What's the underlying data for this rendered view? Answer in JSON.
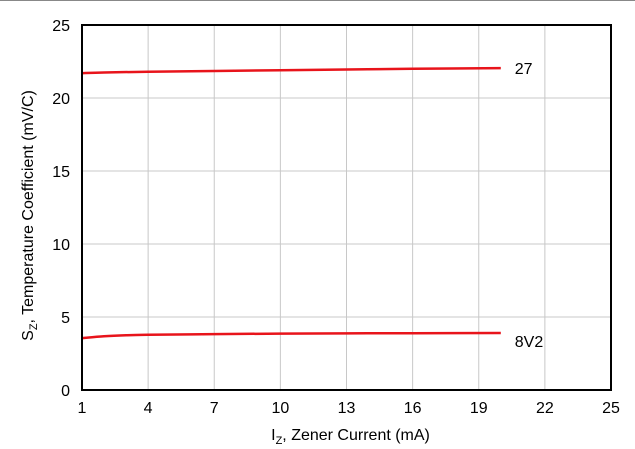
{
  "chart_data": {
    "type": "line",
    "title": "",
    "xlabel": {
      "main": "I",
      "sub": "Z",
      "rest": ", Zener Current (mA)"
    },
    "ylabel": {
      "main": "S",
      "sub": "Z",
      "rest": ", Temperature Coefficient (mV/C)"
    },
    "xlim": [
      1,
      25
    ],
    "ylim": [
      0,
      25
    ],
    "xticks": [
      1,
      4,
      7,
      10,
      13,
      16,
      19,
      22,
      25
    ],
    "yticks": [
      0,
      5,
      10,
      15,
      20,
      25
    ],
    "grid": true,
    "colors": {
      "series": "#e8141b",
      "grid": "#c8c8c8",
      "frame": "#000000"
    },
    "series": [
      {
        "name": "27",
        "points": [
          [
            1,
            21.7
          ],
          [
            2,
            21.75
          ],
          [
            4,
            21.8
          ],
          [
            7,
            21.85
          ],
          [
            10,
            21.9
          ],
          [
            13,
            21.95
          ],
          [
            16,
            22.0
          ],
          [
            20,
            22.05
          ]
        ]
      },
      {
        "name": "8V2",
        "points": [
          [
            1,
            3.55
          ],
          [
            2,
            3.68
          ],
          [
            3,
            3.75
          ],
          [
            4,
            3.78
          ],
          [
            7,
            3.83
          ],
          [
            10,
            3.86
          ],
          [
            13,
            3.88
          ],
          [
            16,
            3.89
          ],
          [
            20,
            3.9
          ]
        ]
      }
    ]
  }
}
